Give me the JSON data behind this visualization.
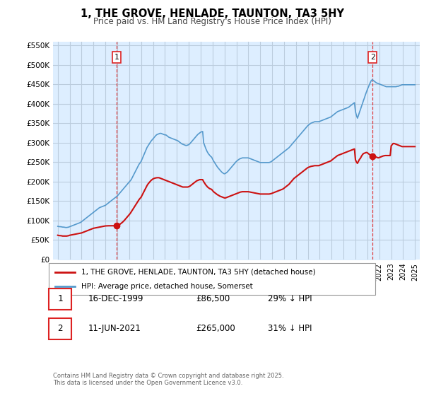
{
  "title": "1, THE GROVE, HENLADE, TAUNTON, TA3 5HY",
  "subtitle": "Price paid vs. HM Land Registry's House Price Index (HPI)",
  "ylim": [
    0,
    560000
  ],
  "yticks": [
    0,
    50000,
    100000,
    150000,
    200000,
    250000,
    300000,
    350000,
    400000,
    450000,
    500000,
    550000
  ],
  "ytick_labels": [
    "£0",
    "£50K",
    "£100K",
    "£150K",
    "£200K",
    "£250K",
    "£300K",
    "£350K",
    "£400K",
    "£450K",
    "£500K",
    "£550K"
  ],
  "background_color": "#ffffff",
  "chart_fill_color": "#ddeeff",
  "grid_color": "#bbccdd",
  "hpi_color": "#5599cc",
  "property_color": "#cc1111",
  "vline_color": "#dd2222",
  "sale1_year": 1999.96,
  "sale1_price": 86500,
  "sale1_label": "1",
  "sale2_year": 2021.44,
  "sale2_price": 265000,
  "sale2_label": "2",
  "legend_property": "1, THE GROVE, HENLADE, TAUNTON, TA3 5HY (detached house)",
  "legend_hpi": "HPI: Average price, detached house, Somerset",
  "table_rows": [
    {
      "num": "1",
      "date": "16-DEC-1999",
      "price": "£86,500",
      "hpi": "29% ↓ HPI"
    },
    {
      "num": "2",
      "date": "11-JUN-2021",
      "price": "£265,000",
      "hpi": "31% ↓ HPI"
    }
  ],
  "copyright": "Contains HM Land Registry data © Crown copyright and database right 2025.\nThis data is licensed under the Open Government Licence v3.0.",
  "hpi_data_years": [
    1995.0,
    1995.083,
    1995.167,
    1995.25,
    1995.333,
    1995.417,
    1995.5,
    1995.583,
    1995.667,
    1995.75,
    1995.833,
    1995.917,
    1996.0,
    1996.083,
    1996.167,
    1996.25,
    1996.333,
    1996.417,
    1996.5,
    1996.583,
    1996.667,
    1996.75,
    1996.833,
    1996.917,
    1997.0,
    1997.083,
    1997.167,
    1997.25,
    1997.333,
    1997.417,
    1997.5,
    1997.583,
    1997.667,
    1997.75,
    1997.833,
    1997.917,
    1998.0,
    1998.083,
    1998.167,
    1998.25,
    1998.333,
    1998.417,
    1998.5,
    1998.583,
    1998.667,
    1998.75,
    1998.833,
    1998.917,
    1999.0,
    1999.083,
    1999.167,
    1999.25,
    1999.333,
    1999.417,
    1999.5,
    1999.583,
    1999.667,
    1999.75,
    1999.833,
    1999.917,
    2000.0,
    2000.083,
    2000.167,
    2000.25,
    2000.333,
    2000.417,
    2000.5,
    2000.583,
    2000.667,
    2000.75,
    2000.833,
    2000.917,
    2001.0,
    2001.083,
    2001.167,
    2001.25,
    2001.333,
    2001.417,
    2001.5,
    2001.583,
    2001.667,
    2001.75,
    2001.833,
    2001.917,
    2002.0,
    2002.083,
    2002.167,
    2002.25,
    2002.333,
    2002.417,
    2002.5,
    2002.583,
    2002.667,
    2002.75,
    2002.833,
    2002.917,
    2003.0,
    2003.083,
    2003.167,
    2003.25,
    2003.333,
    2003.417,
    2003.5,
    2003.583,
    2003.667,
    2003.75,
    2003.833,
    2003.917,
    2004.0,
    2004.083,
    2004.167,
    2004.25,
    2004.333,
    2004.417,
    2004.5,
    2004.583,
    2004.667,
    2004.75,
    2004.833,
    2004.917,
    2005.0,
    2005.083,
    2005.167,
    2005.25,
    2005.333,
    2005.417,
    2005.5,
    2005.583,
    2005.667,
    2005.75,
    2005.833,
    2005.917,
    2006.0,
    2006.083,
    2006.167,
    2006.25,
    2006.333,
    2006.417,
    2006.5,
    2006.583,
    2006.667,
    2006.75,
    2006.833,
    2006.917,
    2007.0,
    2007.083,
    2007.167,
    2007.25,
    2007.333,
    2007.417,
    2007.5,
    2007.583,
    2007.667,
    2007.75,
    2007.833,
    2007.917,
    2008.0,
    2008.083,
    2008.167,
    2008.25,
    2008.333,
    2008.417,
    2008.5,
    2008.583,
    2008.667,
    2008.75,
    2008.833,
    2008.917,
    2009.0,
    2009.083,
    2009.167,
    2009.25,
    2009.333,
    2009.417,
    2009.5,
    2009.583,
    2009.667,
    2009.75,
    2009.833,
    2009.917,
    2010.0,
    2010.083,
    2010.167,
    2010.25,
    2010.333,
    2010.417,
    2010.5,
    2010.583,
    2010.667,
    2010.75,
    2010.833,
    2010.917,
    2011.0,
    2011.083,
    2011.167,
    2011.25,
    2011.333,
    2011.417,
    2011.5,
    2011.583,
    2011.667,
    2011.75,
    2011.833,
    2011.917,
    2012.0,
    2012.083,
    2012.167,
    2012.25,
    2012.333,
    2012.417,
    2012.5,
    2012.583,
    2012.667,
    2012.75,
    2012.833,
    2012.917,
    2013.0,
    2013.083,
    2013.167,
    2013.25,
    2013.333,
    2013.417,
    2013.5,
    2013.583,
    2013.667,
    2013.75,
    2013.833,
    2013.917,
    2014.0,
    2014.083,
    2014.167,
    2014.25,
    2014.333,
    2014.417,
    2014.5,
    2014.583,
    2014.667,
    2014.75,
    2014.833,
    2014.917,
    2015.0,
    2015.083,
    2015.167,
    2015.25,
    2015.333,
    2015.417,
    2015.5,
    2015.583,
    2015.667,
    2015.75,
    2015.833,
    2015.917,
    2016.0,
    2016.083,
    2016.167,
    2016.25,
    2016.333,
    2016.417,
    2016.5,
    2016.583,
    2016.667,
    2016.75,
    2016.833,
    2016.917,
    2017.0,
    2017.083,
    2017.167,
    2017.25,
    2017.333,
    2017.417,
    2017.5,
    2017.583,
    2017.667,
    2017.75,
    2017.833,
    2017.917,
    2018.0,
    2018.083,
    2018.167,
    2018.25,
    2018.333,
    2018.417,
    2018.5,
    2018.583,
    2018.667,
    2018.75,
    2018.833,
    2018.917,
    2019.0,
    2019.083,
    2019.167,
    2019.25,
    2019.333,
    2019.417,
    2019.5,
    2019.583,
    2019.667,
    2019.75,
    2019.833,
    2019.917,
    2020.0,
    2020.083,
    2020.167,
    2020.25,
    2020.333,
    2020.417,
    2020.5,
    2020.583,
    2020.667,
    2020.75,
    2020.833,
    2020.917,
    2021.0,
    2021.083,
    2021.167,
    2021.25,
    2021.333,
    2021.417,
    2021.5,
    2021.583,
    2021.667,
    2021.75,
    2021.833,
    2021.917,
    2022.0,
    2022.083,
    2022.167,
    2022.25,
    2022.333,
    2022.417,
    2022.5,
    2022.583,
    2022.667,
    2022.75,
    2022.833,
    2022.917,
    2023.0,
    2023.083,
    2023.167,
    2023.25,
    2023.333,
    2023.417,
    2023.5,
    2023.583,
    2023.667,
    2023.75,
    2023.833,
    2023.917,
    2024.0,
    2024.083,
    2024.167,
    2024.25,
    2024.333,
    2024.417,
    2024.5,
    2024.583,
    2024.667,
    2024.75,
    2024.833,
    2024.917,
    2025.0
  ],
  "hpi_data_values": [
    85000,
    84500,
    84000,
    84000,
    83500,
    83000,
    83000,
    82500,
    82000,
    82000,
    82500,
    83000,
    84000,
    85000,
    86000,
    87000,
    88000,
    89000,
    90000,
    91000,
    92000,
    93000,
    94000,
    95000,
    97000,
    99000,
    101000,
    103000,
    105000,
    107000,
    109000,
    111000,
    113000,
    115000,
    117000,
    119000,
    121000,
    123000,
    125000,
    127000,
    129000,
    131000,
    133000,
    134000,
    135000,
    136000,
    137000,
    138000,
    139000,
    141000,
    143000,
    145000,
    147000,
    149000,
    151000,
    153000,
    155000,
    157000,
    159000,
    161000,
    163000,
    166000,
    169000,
    172000,
    175000,
    178000,
    181000,
    184000,
    187000,
    190000,
    193000,
    196000,
    199000,
    202000,
    205000,
    210000,
    215000,
    220000,
    225000,
    230000,
    235000,
    240000,
    245000,
    248000,
    252000,
    258000,
    264000,
    270000,
    276000,
    282000,
    288000,
    292000,
    296000,
    300000,
    304000,
    307000,
    310000,
    313000,
    316000,
    319000,
    321000,
    322000,
    323000,
    324000,
    324000,
    323000,
    322000,
    321000,
    320000,
    320000,
    318000,
    316000,
    314000,
    313000,
    312000,
    311000,
    310000,
    309000,
    308000,
    307000,
    306000,
    305000,
    303000,
    301000,
    299000,
    297000,
    296000,
    295000,
    294000,
    293000,
    293000,
    294000,
    295000,
    297000,
    300000,
    303000,
    306000,
    309000,
    312000,
    315000,
    318000,
    321000,
    323000,
    325000,
    327000,
    328000,
    329000,
    300000,
    293000,
    286000,
    280000,
    275000,
    271000,
    268000,
    265000,
    263000,
    258000,
    253000,
    249000,
    245000,
    241000,
    237000,
    234000,
    231000,
    228000,
    225000,
    223000,
    221000,
    220000,
    221000,
    223000,
    225000,
    228000,
    231000,
    234000,
    237000,
    240000,
    243000,
    246000,
    249000,
    252000,
    254000,
    256000,
    258000,
    259000,
    260000,
    261000,
    261000,
    261000,
    261000,
    261000,
    261000,
    261000,
    260000,
    259000,
    258000,
    257000,
    256000,
    255000,
    254000,
    253000,
    252000,
    251000,
    250000,
    249000,
    249000,
    249000,
    249000,
    249000,
    249000,
    249000,
    249000,
    249000,
    249000,
    250000,
    251000,
    253000,
    255000,
    257000,
    259000,
    261000,
    263000,
    265000,
    267000,
    269000,
    271000,
    273000,
    275000,
    277000,
    279000,
    281000,
    283000,
    285000,
    287000,
    290000,
    293000,
    296000,
    299000,
    302000,
    305000,
    308000,
    311000,
    314000,
    317000,
    320000,
    323000,
    326000,
    329000,
    332000,
    335000,
    338000,
    341000,
    344000,
    346000,
    348000,
    350000,
    351000,
    352000,
    353000,
    354000,
    354000,
    354000,
    354000,
    354000,
    355000,
    356000,
    357000,
    358000,
    359000,
    360000,
    361000,
    362000,
    363000,
    364000,
    365000,
    366000,
    368000,
    370000,
    372000,
    374000,
    376000,
    378000,
    380000,
    381000,
    382000,
    383000,
    384000,
    385000,
    386000,
    387000,
    388000,
    389000,
    390000,
    391000,
    393000,
    395000,
    397000,
    399000,
    401000,
    403000,
    380000,
    370000,
    363000,
    370000,
    378000,
    385000,
    393000,
    400000,
    408000,
    415000,
    423000,
    430000,
    437000,
    443000,
    449000,
    455000,
    460000,
    462000,
    460000,
    458000,
    456000,
    454000,
    453000,
    452000,
    451000,
    450000,
    449000,
    448000,
    447000,
    446000,
    445000,
    444000,
    444000,
    444000,
    444000,
    444000,
    444000,
    444000,
    444000,
    444000,
    444000,
    444000,
    445000,
    445000,
    446000,
    447000,
    448000,
    449000,
    449000,
    449000,
    449000,
    449000,
    449000,
    449000,
    449000,
    449000,
    449000,
    449000,
    449000,
    449000,
    449000
  ],
  "prop_data_years": [
    1995.0,
    1995.083,
    1995.167,
    1995.25,
    1995.333,
    1995.417,
    1995.5,
    1995.583,
    1995.667,
    1995.75,
    1995.833,
    1995.917,
    1996.0,
    1996.083,
    1996.167,
    1996.25,
    1996.333,
    1996.417,
    1996.5,
    1996.583,
    1996.667,
    1996.75,
    1996.833,
    1996.917,
    1997.0,
    1997.083,
    1997.167,
    1997.25,
    1997.333,
    1997.417,
    1997.5,
    1997.583,
    1997.667,
    1997.75,
    1997.833,
    1997.917,
    1998.0,
    1998.083,
    1998.167,
    1998.25,
    1998.333,
    1998.417,
    1998.5,
    1998.583,
    1998.667,
    1998.75,
    1998.833,
    1998.917,
    1999.0,
    1999.083,
    1999.167,
    1999.25,
    1999.333,
    1999.417,
    1999.5,
    1999.583,
    1999.667,
    1999.75,
    1999.833,
    1999.917,
    2000.0,
    2000.083,
    2000.167,
    2000.25,
    2000.333,
    2000.417,
    2000.5,
    2000.583,
    2000.667,
    2000.75,
    2000.833,
    2000.917,
    2001.0,
    2001.083,
    2001.167,
    2001.25,
    2001.333,
    2001.417,
    2001.5,
    2001.583,
    2001.667,
    2001.75,
    2001.833,
    2001.917,
    2002.0,
    2002.083,
    2002.167,
    2002.25,
    2002.333,
    2002.417,
    2002.5,
    2002.583,
    2002.667,
    2002.75,
    2002.833,
    2002.917,
    2003.0,
    2003.083,
    2003.167,
    2003.25,
    2003.333,
    2003.417,
    2003.5,
    2003.583,
    2003.667,
    2003.75,
    2003.833,
    2003.917,
    2004.0,
    2004.083,
    2004.167,
    2004.25,
    2004.333,
    2004.417,
    2004.5,
    2004.583,
    2004.667,
    2004.75,
    2004.833,
    2004.917,
    2005.0,
    2005.083,
    2005.167,
    2005.25,
    2005.333,
    2005.417,
    2005.5,
    2005.583,
    2005.667,
    2005.75,
    2005.833,
    2005.917,
    2006.0,
    2006.083,
    2006.167,
    2006.25,
    2006.333,
    2006.417,
    2006.5,
    2006.583,
    2006.667,
    2006.75,
    2006.833,
    2006.917,
    2007.0,
    2007.083,
    2007.167,
    2007.25,
    2007.333,
    2007.417,
    2007.5,
    2007.583,
    2007.667,
    2007.75,
    2007.833,
    2007.917,
    2008.0,
    2008.083,
    2008.167,
    2008.25,
    2008.333,
    2008.417,
    2008.5,
    2008.583,
    2008.667,
    2008.75,
    2008.833,
    2008.917,
    2009.0,
    2009.083,
    2009.167,
    2009.25,
    2009.333,
    2009.417,
    2009.5,
    2009.583,
    2009.667,
    2009.75,
    2009.833,
    2009.917,
    2010.0,
    2010.083,
    2010.167,
    2010.25,
    2010.333,
    2010.417,
    2010.5,
    2010.583,
    2010.667,
    2010.75,
    2010.833,
    2010.917,
    2011.0,
    2011.083,
    2011.167,
    2011.25,
    2011.333,
    2011.417,
    2011.5,
    2011.583,
    2011.667,
    2011.75,
    2011.833,
    2011.917,
    2012.0,
    2012.083,
    2012.167,
    2012.25,
    2012.333,
    2012.417,
    2012.5,
    2012.583,
    2012.667,
    2012.75,
    2012.833,
    2012.917,
    2013.0,
    2013.083,
    2013.167,
    2013.25,
    2013.333,
    2013.417,
    2013.5,
    2013.583,
    2013.667,
    2013.75,
    2013.833,
    2013.917,
    2014.0,
    2014.083,
    2014.167,
    2014.25,
    2014.333,
    2014.417,
    2014.5,
    2014.583,
    2014.667,
    2014.75,
    2014.833,
    2014.917,
    2015.0,
    2015.083,
    2015.167,
    2015.25,
    2015.333,
    2015.417,
    2015.5,
    2015.583,
    2015.667,
    2015.75,
    2015.833,
    2015.917,
    2016.0,
    2016.083,
    2016.167,
    2016.25,
    2016.333,
    2016.417,
    2016.5,
    2016.583,
    2016.667,
    2016.75,
    2016.833,
    2016.917,
    2017.0,
    2017.083,
    2017.167,
    2017.25,
    2017.333,
    2017.417,
    2017.5,
    2017.583,
    2017.667,
    2017.75,
    2017.833,
    2017.917,
    2018.0,
    2018.083,
    2018.167,
    2018.25,
    2018.333,
    2018.417,
    2018.5,
    2018.583,
    2018.667,
    2018.75,
    2018.833,
    2018.917,
    2019.0,
    2019.083,
    2019.167,
    2019.25,
    2019.333,
    2019.417,
    2019.5,
    2019.583,
    2019.667,
    2019.75,
    2019.833,
    2019.917,
    2020.0,
    2020.083,
    2020.167,
    2020.25,
    2020.333,
    2020.417,
    2020.5,
    2020.583,
    2020.667,
    2020.75,
    2020.833,
    2020.917,
    2021.0,
    2021.083,
    2021.167,
    2021.25,
    2021.333,
    2021.417,
    2021.5,
    2021.583,
    2021.667,
    2021.75,
    2021.833,
    2021.917,
    2022.0,
    2022.083,
    2022.167,
    2022.25,
    2022.333,
    2022.417,
    2022.5,
    2022.583,
    2022.667,
    2022.75,
    2022.833,
    2022.917,
    2023.0,
    2023.083,
    2023.167,
    2023.25,
    2023.333,
    2023.417,
    2023.5,
    2023.583,
    2023.667,
    2023.75,
    2023.833,
    2023.917,
    2024.0,
    2024.083,
    2024.167,
    2024.25,
    2024.333,
    2024.417,
    2024.5,
    2024.583,
    2024.667,
    2024.75,
    2024.833,
    2024.917,
    2025.0
  ],
  "prop_data_values": [
    62000,
    61500,
    61000,
    61000,
    60500,
    60000,
    60000,
    60000,
    60000,
    60000,
    60500,
    61000,
    62000,
    62500,
    63000,
    63500,
    64000,
    64500,
    65000,
    65500,
    66000,
    66500,
    67000,
    67500,
    68000,
    69000,
    70000,
    71000,
    72000,
    73000,
    74000,
    75000,
    76000,
    77000,
    78000,
    79000,
    80000,
    80500,
    81000,
    81500,
    82000,
    82500,
    83000,
    83500,
    84000,
    84500,
    85000,
    85500,
    86000,
    86200,
    86300,
    86400,
    86500,
    86500,
    86500,
    86500,
    86500,
    86500,
    86500,
    86500,
    87000,
    88000,
    89500,
    91000,
    93000,
    95000,
    97500,
    100000,
    103000,
    106000,
    109000,
    112000,
    115000,
    118000,
    122000,
    126000,
    130000,
    134000,
    138000,
    142000,
    146000,
    150000,
    154000,
    157000,
    160000,
    165000,
    170000,
    175000,
    180000,
    185000,
    190000,
    194000,
    197000,
    200000,
    203000,
    205000,
    207000,
    208000,
    209000,
    209500,
    210000,
    210000,
    210000,
    209000,
    208000,
    207000,
    206000,
    205000,
    204000,
    203000,
    202000,
    201000,
    200000,
    199000,
    198000,
    197000,
    196000,
    195000,
    194000,
    193000,
    192000,
    191000,
    190000,
    189000,
    188000,
    187000,
    186000,
    186000,
    186000,
    186000,
    186000,
    186000,
    187000,
    188000,
    190000,
    192000,
    194000,
    196000,
    198000,
    200000,
    202000,
    203000,
    204000,
    205000,
    205000,
    205000,
    205000,
    200000,
    196000,
    192000,
    189000,
    186000,
    184000,
    182000,
    181000,
    180000,
    177000,
    174000,
    172000,
    170000,
    168000,
    166000,
    165000,
    163000,
    162000,
    161000,
    160000,
    159000,
    158000,
    158000,
    159000,
    160000,
    161000,
    162000,
    163000,
    164000,
    165000,
    166000,
    167000,
    168000,
    169000,
    170000,
    171000,
    172000,
    173000,
    173500,
    174000,
    174000,
    174000,
    174000,
    174000,
    174000,
    174000,
    173500,
    173000,
    172500,
    172000,
    171500,
    171000,
    170500,
    170000,
    169500,
    169000,
    168500,
    168000,
    168000,
    168000,
    168000,
    168000,
    168000,
    168000,
    168000,
    168000,
    168000,
    168500,
    169000,
    170000,
    171000,
    172000,
    173000,
    174000,
    175000,
    176000,
    177000,
    178000,
    179000,
    180000,
    181000,
    183000,
    185000,
    187000,
    189000,
    191000,
    193000,
    196000,
    199000,
    202000,
    205000,
    208000,
    210000,
    212000,
    214000,
    216000,
    218000,
    220000,
    222000,
    224000,
    226000,
    228000,
    230000,
    232000,
    234000,
    236000,
    237000,
    238000,
    239000,
    239500,
    240000,
    240500,
    241000,
    241000,
    241000,
    241000,
    241000,
    242000,
    243000,
    244000,
    245000,
    246000,
    247000,
    248000,
    249000,
    250000,
    251000,
    252000,
    253000,
    255000,
    257000,
    259000,
    261000,
    263000,
    265000,
    267000,
    268000,
    269000,
    270000,
    271000,
    272000,
    273000,
    274000,
    275000,
    276000,
    277000,
    278000,
    279000,
    280000,
    281000,
    282000,
    283000,
    284000,
    256000,
    250000,
    247000,
    252000,
    257000,
    260000,
    265000,
    269000,
    272000,
    273000,
    274000,
    275000,
    274000,
    272000,
    270000,
    268000,
    267000,
    266000,
    265500,
    265000,
    264000,
    263000,
    262000,
    261000,
    262000,
    263000,
    264000,
    265000,
    266000,
    266500,
    267000,
    267000,
    267000,
    267000,
    267000,
    267000,
    292000,
    295000,
    298000,
    298000,
    297000,
    296000,
    295000,
    294000,
    293000,
    292000,
    291000,
    290000,
    290000,
    290000,
    290000,
    290000,
    290000,
    290000,
    290000,
    290000,
    290000,
    290000,
    290000,
    290000,
    290000
  ]
}
